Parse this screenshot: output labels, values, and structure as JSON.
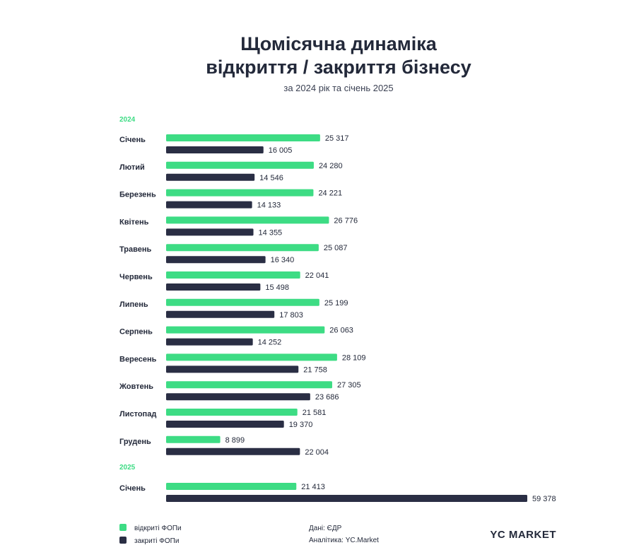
{
  "colors": {
    "opened": "#3ddc84",
    "closed": "#2a2e44",
    "text": "#23293a"
  },
  "chart_data": {
    "type": "bar",
    "orientation": "horizontal",
    "title_line1": "Щомісячна динаміка",
    "title_line2": "відкриття / закриття бізнесу",
    "subtitle": "за 2024 рік та січень 2025",
    "groups": [
      {
        "year": "2024",
        "categories": [
          "Січень",
          "Лютий",
          "Березень",
          "Квітень",
          "Травень",
          "Червень",
          "Липень",
          "Серпень",
          "Вересень",
          "Жовтень",
          "Листопад",
          "Грудень"
        ]
      },
      {
        "year": "2025",
        "categories": [
          "Січень"
        ]
      }
    ],
    "series": [
      {
        "name": "відкриті ФОПи",
        "values": [
          25317,
          24280,
          24221,
          26776,
          25087,
          22041,
          25199,
          26063,
          28109,
          27305,
          21581,
          8899,
          21413
        ]
      },
      {
        "name": "закриті ФОПи",
        "values": [
          16005,
          14546,
          14133,
          14355,
          16340,
          15498,
          17803,
          14252,
          21758,
          23686,
          19370,
          22004,
          59378
        ]
      }
    ],
    "value_labels_opened": [
      "25 317",
      "24 280",
      "24 221",
      "26 776",
      "25 087",
      "22 041",
      "25 199",
      "26 063",
      "28 109",
      "27 305",
      "21 581",
      "8 899",
      "21 413"
    ],
    "value_labels_closed": [
      "16 005",
      "14 546",
      "14 133",
      "14 355",
      "16 340",
      "15 498",
      "17 803",
      "14 252",
      "21 758",
      "23 686",
      "19 370",
      "22 004",
      "59 378"
    ],
    "xlim": [
      0,
      59378
    ],
    "legend_position": "bottom-left"
  },
  "footer": {
    "source": "Дані: ЄДР",
    "analytics": "Аналітика: YC.Market",
    "logo": "YC MARKET"
  }
}
